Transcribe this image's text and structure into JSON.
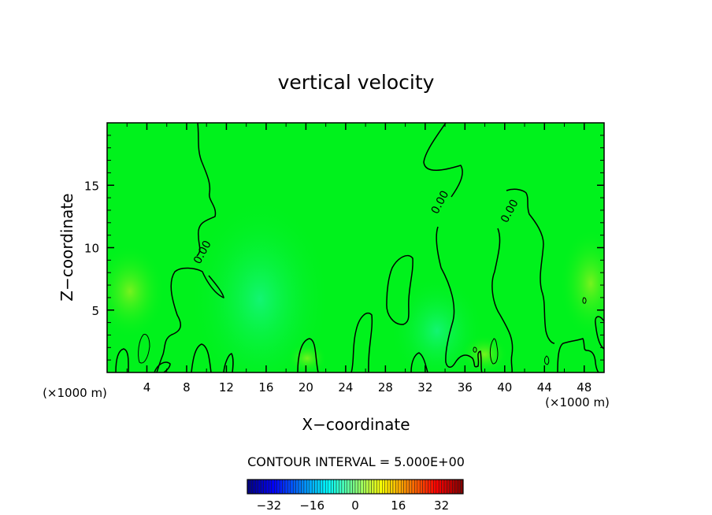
{
  "chart_data": {
    "type": "heatmap",
    "title": "vertical velocity",
    "xlabel": "X−coordinate",
    "ylabel": "Z−coordinate",
    "x_unit_left": "(×1000 m)",
    "x_unit_right": "(×1000 m)",
    "xlim": [
      0,
      50
    ],
    "ylim": [
      0,
      20
    ],
    "x_ticks": [
      4,
      8,
      12,
      16,
      20,
      24,
      28,
      32,
      36,
      40,
      44,
      48
    ],
    "y_ticks": [
      5,
      10,
      15
    ],
    "contour_interval_text": "CONTOUR INTERVAL = 5.000E+00",
    "contour_labels": [
      {
        "text": "0.00",
        "x": 9.9,
        "z": 9.5
      },
      {
        "text": "0.00",
        "x": 33.8,
        "z": 13.5
      },
      {
        "text": "0.00",
        "x": 40.8,
        "z": 12.8
      }
    ],
    "colorbar": {
      "range": [
        -40,
        40
      ],
      "ticks": [
        -32,
        -16,
        0,
        16,
        32
      ],
      "tick_labels": [
        "−32",
        "−16",
        "0",
        "16",
        "32"
      ]
    },
    "colors": {
      "field": "#00f21c",
      "line": "#000000"
    }
  }
}
